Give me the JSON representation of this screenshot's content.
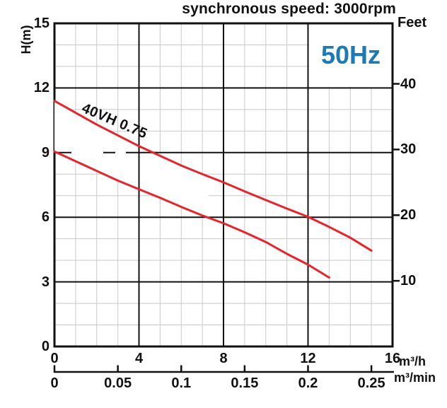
{
  "chart_data": {
    "type": "line",
    "title": "synchronous speed: 3000rpm",
    "frequency_badge": "50Hz",
    "curve_label": "40VH 0.75",
    "legend": "none",
    "grid": true,
    "colors": {
      "curve": "#e7232b",
      "frequency": "#1d7ab4",
      "major_grid": "#111111",
      "minor_grid": "#c9c9c9",
      "background": "#ffffff"
    },
    "y_axis_left": {
      "label": "H(m)",
      "min": 0,
      "max": 15,
      "major_tick_values": [
        15,
        12,
        9,
        6,
        3,
        0
      ],
      "major_tick_labels": [
        "15",
        "12",
        "9",
        "6",
        "3",
        "0"
      ],
      "minor_step": 1
    },
    "y_axis_right": {
      "label": "Feet",
      "tick_values": [
        40,
        30,
        20,
        10
      ],
      "tick_labels": [
        "40",
        "30",
        "20",
        "10"
      ],
      "meters_per_foot": 0.3048
    },
    "x_axis_primary": {
      "unit": "m³/h",
      "min": 0,
      "max": 16,
      "major_tick_values": [
        0,
        4,
        8,
        12,
        16
      ],
      "major_tick_labels": [
        "0",
        "4",
        "8",
        "12",
        "16"
      ],
      "minor_step": 1
    },
    "x_axis_secondary": {
      "unit": "m³/min",
      "tick_values": [
        0,
        0.05,
        0.1,
        0.15,
        0.2,
        0.25
      ],
      "tick_labels": [
        "0",
        "0.05",
        "0.1",
        "0.15",
        "0.2",
        "0.25"
      ],
      "m3h_per_m3min": 60
    },
    "series": [
      {
        "name": "40VH 0.75 upper curve (H vs Q)",
        "points": [
          [
            0,
            11.4
          ],
          [
            1,
            10.85
          ],
          [
            2,
            10.3
          ],
          [
            3,
            9.8
          ],
          [
            4,
            9.3
          ],
          [
            5,
            8.85
          ],
          [
            6,
            8.4
          ],
          [
            7,
            8.0
          ],
          [
            8,
            7.62
          ],
          [
            9,
            7.2
          ],
          [
            10,
            6.8
          ],
          [
            11,
            6.4
          ],
          [
            12,
            6.02
          ],
          [
            13,
            5.55
          ],
          [
            14,
            5.05
          ],
          [
            15,
            4.45
          ]
        ]
      },
      {
        "name": "40VH 0.75 lower curve (H vs Q)",
        "points": [
          [
            0,
            9.05
          ],
          [
            1,
            8.6
          ],
          [
            2,
            8.15
          ],
          [
            3,
            7.7
          ],
          [
            4,
            7.3
          ],
          [
            5,
            6.9
          ],
          [
            6,
            6.48
          ],
          [
            7,
            6.08
          ],
          [
            8,
            5.72
          ],
          [
            9,
            5.3
          ],
          [
            10,
            4.85
          ],
          [
            11,
            4.3
          ],
          [
            12,
            3.8
          ],
          [
            13,
            3.2
          ]
        ]
      }
    ]
  }
}
